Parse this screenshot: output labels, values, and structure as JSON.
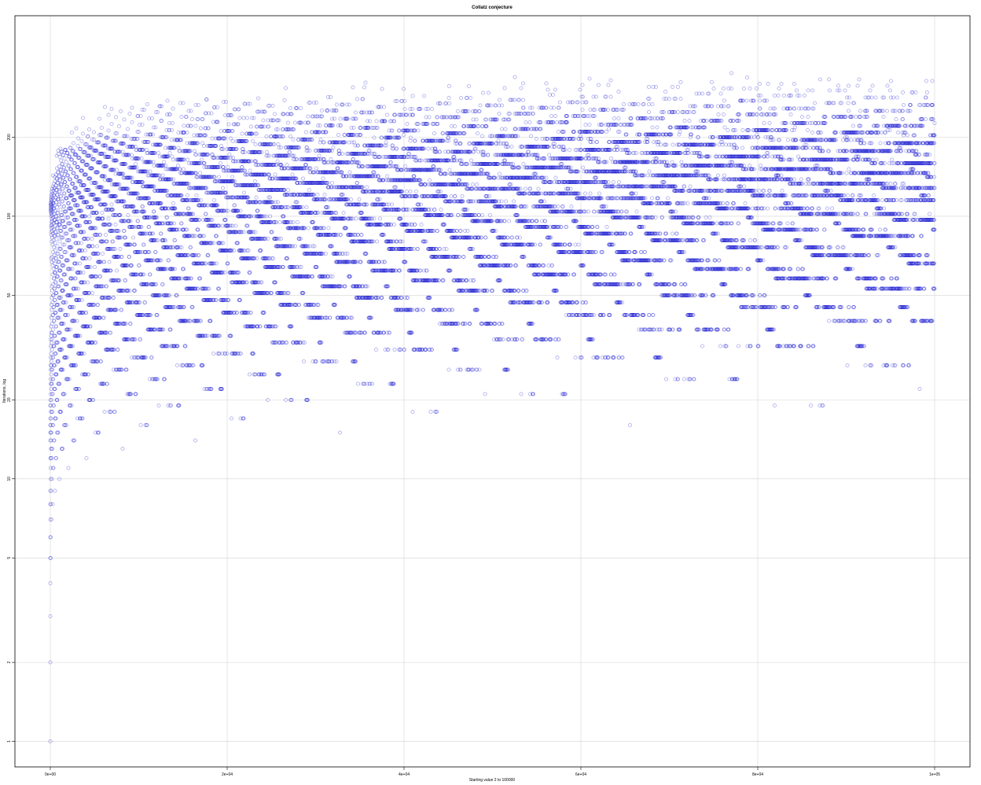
{
  "chart_data": {
    "type": "scatter",
    "title": "Collatz conjecture",
    "xlabel": "Starting value 2 to 100000",
    "ylabel": "Iterations, log",
    "x_range": [
      2,
      100000
    ],
    "y_scale": "log",
    "y_range": [
      0.8,
      580
    ],
    "x_ticks": [
      0,
      20000,
      40000,
      60000,
      80000,
      100000
    ],
    "x_tick_labels": [
      "0e+00",
      "2e+04",
      "4e+04",
      "6e+04",
      "8e+04",
      "1e+05"
    ],
    "y_ticks": [
      1,
      2,
      5,
      10,
      20,
      50,
      100,
      200
    ],
    "y_tick_labels": [
      "1",
      "2",
      "5",
      "10",
      "20",
      "50",
      "100",
      "200"
    ],
    "grid": true,
    "point_color": "#0000cd",
    "point_opacity": 0.3,
    "series": [
      {
        "values": "number of Collatz iterations (steps to reach 1) for every starting value n from 2 to 100000",
        "summary": {
          "min_iterations": 1,
          "max_iterations": 350,
          "count": 99999
        }
      }
    ]
  }
}
